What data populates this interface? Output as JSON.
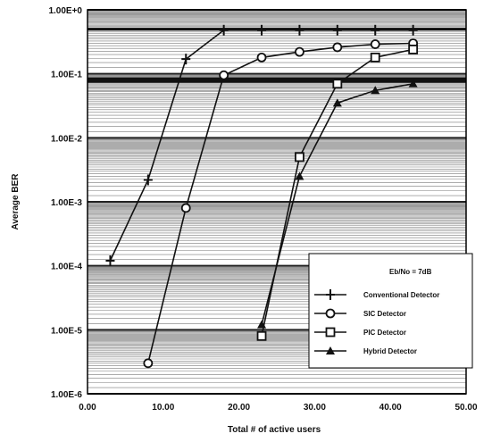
{
  "chart_data": {
    "type": "line",
    "title": "",
    "xlabel": "Total # of active users",
    "ylabel": "Average BER",
    "xlim": [
      0,
      50
    ],
    "ylim": [
      1e-06,
      1
    ],
    "yscale": "log",
    "grid": true,
    "legend_position": "bottom-right",
    "legend_title": "Eb/No = 7dB",
    "x_tick_labels": [
      "0.00",
      "10.00",
      "20.00",
      "30.00",
      "40.00",
      "50.00"
    ],
    "y_tick_labels": [
      "1.00E+0",
      "1.00E-1",
      "1.00E-2",
      "1.00E-3",
      "1.00E-4",
      "1.00E-5",
      "1.00E-6"
    ],
    "series": [
      {
        "name": "Conventional Detector",
        "marker": "plus",
        "x": [
          3,
          8,
          13,
          18,
          23,
          28,
          33,
          38,
          43
        ],
        "y": [
          0.00012,
          0.0022,
          0.17,
          0.48,
          0.48,
          0.48,
          0.48,
          0.48,
          0.48
        ]
      },
      {
        "name": "SIC Detector",
        "marker": "circle",
        "x": [
          8,
          13,
          18,
          23,
          28,
          33,
          38,
          43
        ],
        "y": [
          3e-06,
          0.0008,
          0.095,
          0.18,
          0.22,
          0.26,
          0.29,
          0.3
        ]
      },
      {
        "name": "PIC Detector",
        "marker": "square",
        "x": [
          23,
          28,
          33,
          38,
          43
        ],
        "y": [
          8e-06,
          0.005,
          0.07,
          0.18,
          0.24
        ]
      },
      {
        "name": "Hybrid Detector",
        "marker": "triangle",
        "x": [
          23,
          28,
          33,
          38,
          43
        ],
        "y": [
          1.2e-05,
          0.0025,
          0.035,
          0.055,
          0.07
        ]
      }
    ]
  }
}
